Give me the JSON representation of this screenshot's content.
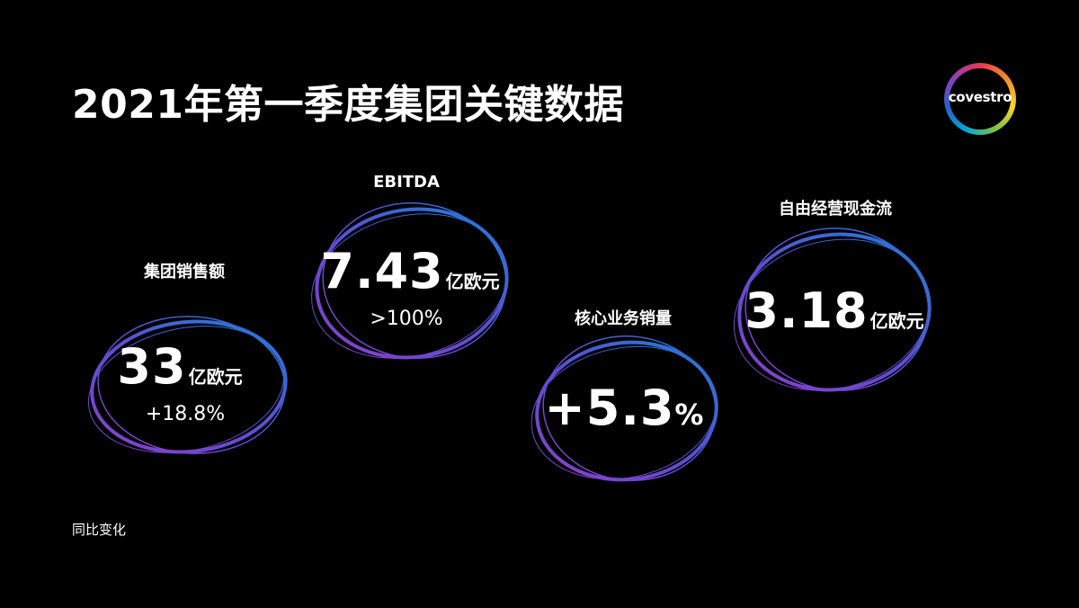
{
  "header": {
    "title": "2021年第一季度集团关键数据",
    "logo": "covestro"
  },
  "kpis": [
    {
      "label": "集团销售额",
      "value": "33",
      "unit": "亿欧元",
      "change": "+18.8%"
    },
    {
      "label": "EBITDA",
      "value": "7.43",
      "unit": "亿欧元",
      "change": ">100%"
    },
    {
      "label": "核心业务销量",
      "value": "+5.3",
      "unit": "%"
    },
    {
      "label": "自由经营现金流",
      "value": "3.18",
      "unit": "亿欧元"
    }
  ],
  "footnote": "同比变化"
}
